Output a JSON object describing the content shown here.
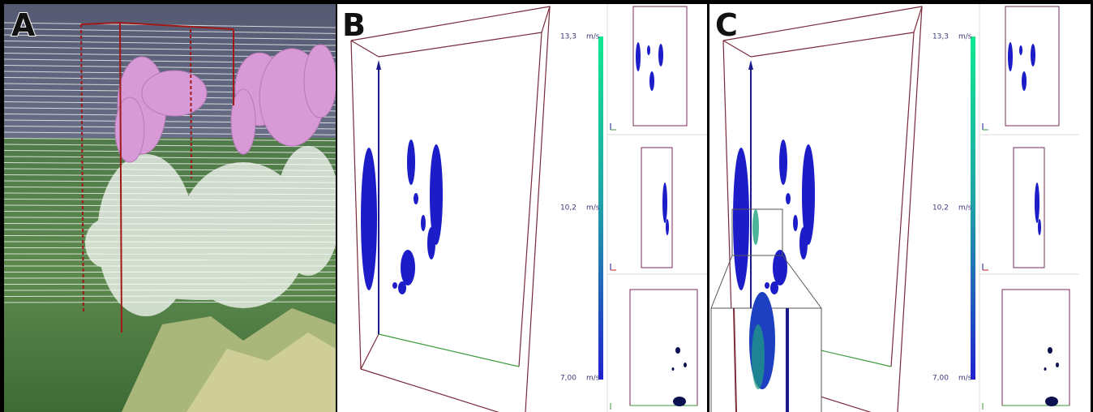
{
  "panels": [
    {
      "label": "A"
    },
    {
      "label": "B",
      "colorbar": [
        {
          "value": "13,3",
          "unit": "m/s"
        },
        {
          "value": "10,2",
          "unit": "m/s"
        },
        {
          "value": "7,00",
          "unit": "m/s"
        }
      ]
    },
    {
      "label": "C",
      "colorbar": [
        {
          "value": "13,3",
          "unit": "m/s"
        },
        {
          "value": "10,2",
          "unit": "m/s"
        },
        {
          "value": "7,00",
          "unit": "m/s"
        }
      ]
    }
  ]
}
